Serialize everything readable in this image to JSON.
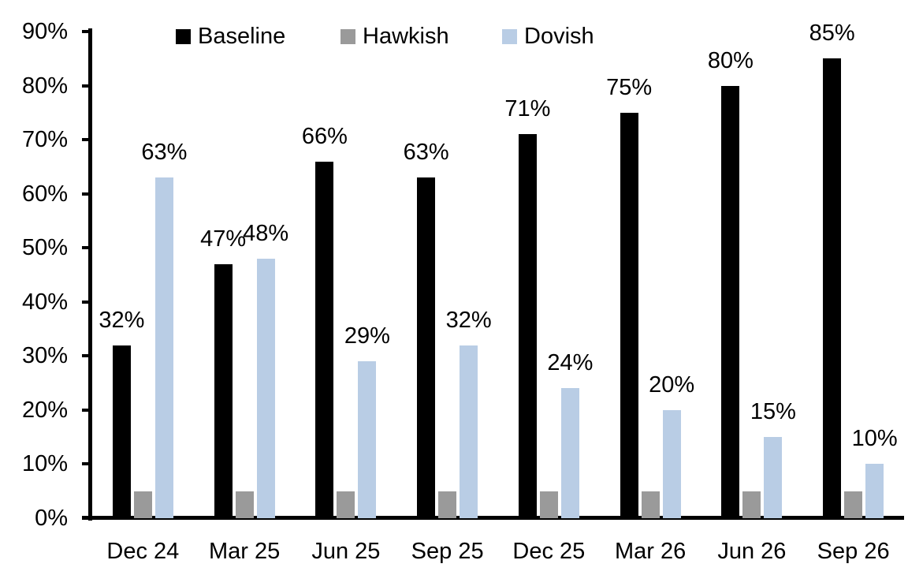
{
  "chart_data": {
    "type": "bar",
    "categories": [
      "Dec 24",
      "Mar 25",
      "Jun 25",
      "Sep 25",
      "Dec 25",
      "Mar 26",
      "Jun 26",
      "Sep 26"
    ],
    "series": [
      {
        "name": "Baseline",
        "color": "#000000",
        "values": [
          32,
          47,
          66,
          63,
          71,
          75,
          80,
          85
        ],
        "data_labels": [
          "32%",
          "47%",
          "66%",
          "63%",
          "71%",
          "75%",
          "80%",
          "85%"
        ]
      },
      {
        "name": "Hawkish",
        "color": "#9a9a9a",
        "values": [
          5,
          5,
          5,
          5,
          5,
          5,
          5,
          5
        ],
        "data_labels": []
      },
      {
        "name": "Dovish",
        "color": "#b9cde5",
        "values": [
          63,
          48,
          29,
          32,
          24,
          20,
          15,
          10
        ],
        "data_labels": [
          "63%",
          "48%",
          "29%",
          "32%",
          "24%",
          "20%",
          "15%",
          "10%"
        ]
      }
    ],
    "y_axis": {
      "min": 0,
      "max": 90,
      "tick_step": 10,
      "tick_labels": [
        "0%",
        "10%",
        "20%",
        "30%",
        "40%",
        "50%",
        "60%",
        "70%",
        "80%",
        "90%"
      ]
    },
    "legend": {
      "position": "top"
    },
    "grid": false
  }
}
